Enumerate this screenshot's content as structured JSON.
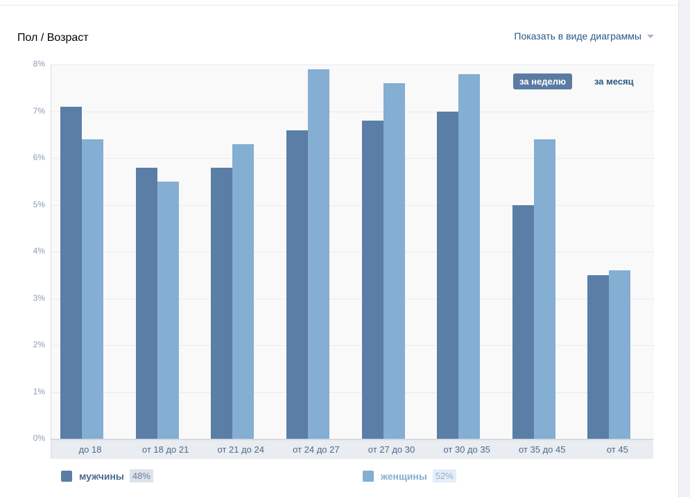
{
  "header": {
    "title": "Пол / Возраст",
    "view_mode": "Показать в виде диаграммы"
  },
  "periods": {
    "week": "за неделю",
    "month": "за месяц",
    "active": "week"
  },
  "chart_data": {
    "type": "bar",
    "title": "Пол / Возраст",
    "categories": [
      "до 18",
      "от 18 до 21",
      "от 21 до 24",
      "от 24 до 27",
      "от 27 до 30",
      "от 30 до 35",
      "от 35 до 45",
      "от 45"
    ],
    "series": [
      {
        "name": "мужчины",
        "share": "48%",
        "color": "#5a7ea6",
        "values": [
          7.1,
          5.8,
          5.8,
          6.6,
          6.8,
          7.0,
          5.0,
          3.5
        ]
      },
      {
        "name": "женщины",
        "share": "52%",
        "color": "#84aed2",
        "values": [
          6.4,
          5.5,
          6.3,
          7.9,
          7.6,
          7.8,
          6.4,
          3.6
        ]
      }
    ],
    "yticks": [
      "0%",
      "1%",
      "2%",
      "3%",
      "4%",
      "5%",
      "6%",
      "7%",
      "8%"
    ],
    "ylim": [
      0,
      8
    ],
    "ylabel": "",
    "xlabel": "",
    "grid": true,
    "legend": "bottom"
  }
}
